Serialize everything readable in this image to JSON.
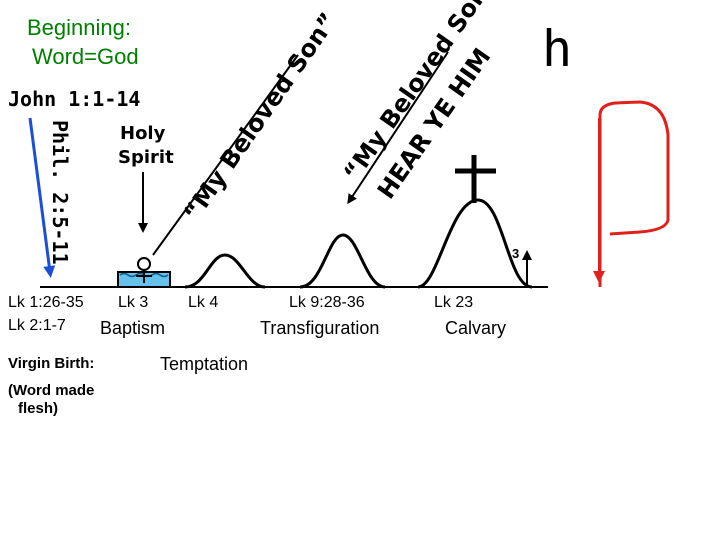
{
  "header": {
    "title_line1": "Beginning:",
    "title_line2": "Word=God",
    "john_ref": "John 1:1-14"
  },
  "phil_ref": "Phil. 2:5-11",
  "holy_spirit": {
    "line1": "Holy",
    "line2": "Spirit"
  },
  "quotes": {
    "beloved_son": "“My Beloved Son”",
    "hear_him": "“My Beloved Son”",
    "hear_him_line2": "HEAR YE HIM"
  },
  "glyphs": {
    "h": "h",
    "P": "P",
    "three": "3"
  },
  "bottom_labels": {
    "lk1": "Lk 1:26-35",
    "lk2": "Lk 2:1-7",
    "lk3": "Lk 3",
    "baptism": "Baptism",
    "lk4": "Lk 4",
    "temptation": "Temptation",
    "lk9": "Lk 9:28-36",
    "transfiguration": "Transfiguration",
    "lk23": "Lk 23",
    "calvary": "Calvary",
    "virgin_birth": "Virgin Birth:",
    "word_made_flesh_1": "(Word made",
    "word_made_flesh_2": "flesh)"
  },
  "colors": {
    "green": "#008000",
    "blue": "#1a4fd6",
    "red": "#e0201a",
    "water": "#66c2ea"
  }
}
